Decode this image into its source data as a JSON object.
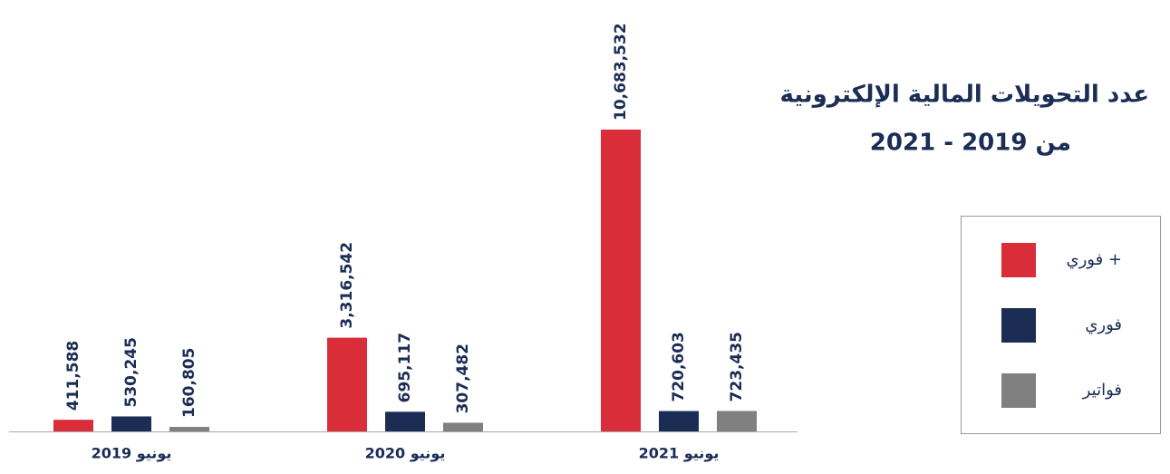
{
  "chart_data": {
    "type": "bar",
    "title_lines": [
      "عدد التحويلات المالية الإلكترونية",
      "من 2019 - 2021"
    ],
    "categories": [
      "يونيو 2019",
      "يونيو 2020",
      "يونيو 2021"
    ],
    "series": [
      {
        "name": "فوري +",
        "color": "#d92d3a",
        "values": [
          411588,
          3316542,
          10683532
        ],
        "value_labels": [
          "411,588",
          "3,316,542",
          "10,683,532"
        ]
      },
      {
        "name": "فوري",
        "color": "#1b2d55",
        "values": [
          530245,
          695117,
          720603
        ],
        "value_labels": [
          "530,245",
          "695,117",
          "720,603"
        ]
      },
      {
        "name": "فواتير",
        "color": "#808080",
        "values": [
          160805,
          307482,
          723435
        ],
        "value_labels": [
          "160,805",
          "307,482",
          "723,435"
        ]
      }
    ]
  }
}
